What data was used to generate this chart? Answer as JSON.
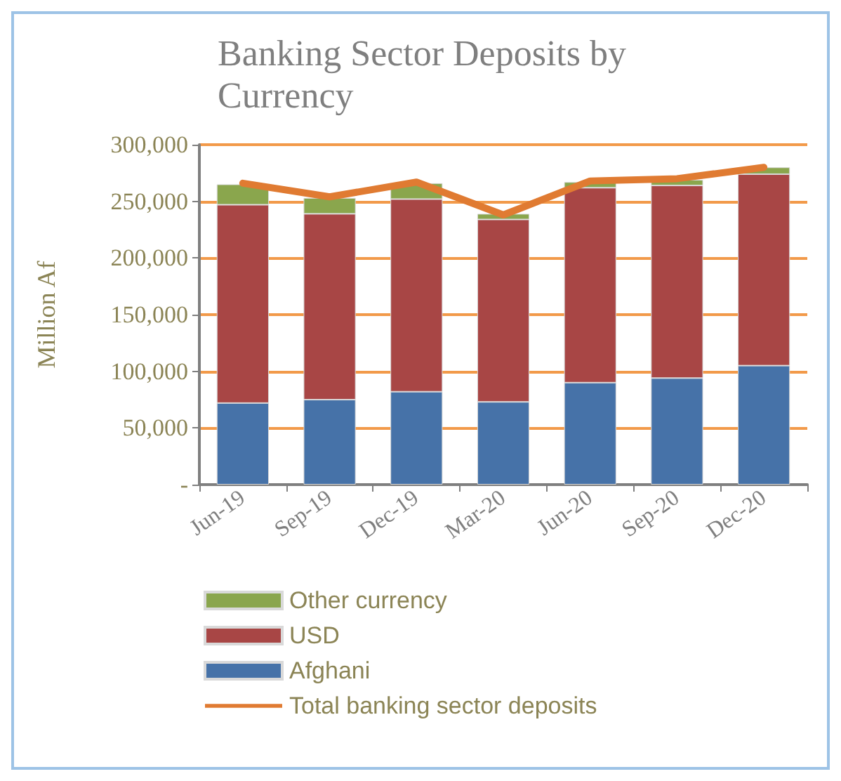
{
  "chart_data": {
    "type": "bar",
    "title": "Banking Sector Deposits by Currency",
    "ylabel": "Million Af",
    "categories": [
      "Jun-19",
      "Sep-19",
      "Dec-19",
      "Mar-20",
      "Jun-20",
      "Sep-20",
      "Dec-20"
    ],
    "stacked": true,
    "series": [
      {
        "name": "Afghani",
        "color": "#4672a8",
        "values": [
          72000,
          75000,
          82000,
          73000,
          90000,
          94000,
          105000
        ]
      },
      {
        "name": "USD",
        "color": "#a84645",
        "values": [
          175000,
          164000,
          170000,
          161000,
          172000,
          170000,
          169000
        ]
      },
      {
        "name": "Other currency",
        "color": "#8aa64d",
        "values": [
          18000,
          14000,
          14000,
          5000,
          5000,
          5000,
          6000
        ]
      },
      {
        "name": "Total banking sector deposits",
        "type": "line",
        "color": "#e07b32",
        "values": [
          266000,
          254000,
          267000,
          238000,
          268000,
          270000,
          280000
        ]
      }
    ],
    "ylim": [
      0,
      300000
    ],
    "yticks": [
      {
        "value": 0,
        "label": "-"
      },
      {
        "value": 50000,
        "label": "50,000"
      },
      {
        "value": 100000,
        "label": "100,000"
      },
      {
        "value": 150000,
        "label": "150,000"
      },
      {
        "value": 200000,
        "label": "200,000"
      },
      {
        "value": 250000,
        "label": "250,000"
      },
      {
        "value": 300000,
        "label": "300,000"
      }
    ],
    "grid": "y",
    "legend": "bottom",
    "marker": "none"
  }
}
